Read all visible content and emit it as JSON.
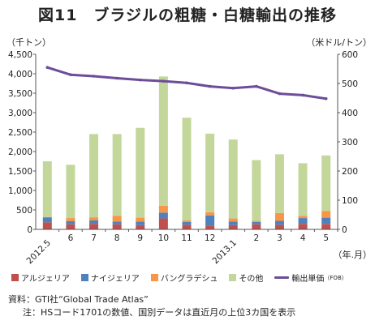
{
  "title": "図11　ブラジルの粗糖・白糖輸出の推移",
  "left_axis_unit": "（千トン）",
  "right_axis_unit": "（米ドル/トン）",
  "x_axis_unit": "（年.月）",
  "source": "資料：GTI社“Global Trade Atlas”",
  "note": "注：HSコード1701の数値、国別データは直近月の上位3カ国を表示",
  "colors": {
    "algeria": "#c0504d",
    "nigeria": "#4f81bd",
    "bangladesh": "#f79646",
    "other": "#c4d79b",
    "price": "#6d4d9a"
  },
  "chart_data": {
    "type": "bar",
    "stacked": true,
    "categories": [
      "2012.5",
      "6",
      "7",
      "8",
      "9",
      "10",
      "11",
      "12",
      "2013.1",
      "2",
      "3",
      "4",
      "5"
    ],
    "series": [
      {
        "name": "アルジェリア",
        "values": [
          180,
          130,
          140,
          130,
          110,
          280,
          120,
          100,
          110,
          130,
          120,
          140,
          140
        ]
      },
      {
        "name": "ナイジェリア",
        "values": [
          130,
          80,
          90,
          70,
          90,
          150,
          70,
          260,
          90,
          60,
          100,
          150,
          160
        ]
      },
      {
        "name": "バングラデシュ",
        "values": [
          0,
          80,
          80,
          150,
          100,
          180,
          40,
          80,
          80,
          30,
          200,
          60,
          170
        ]
      },
      {
        "name": "その他",
        "values": [
          1440,
          1370,
          2140,
          2100,
          2310,
          3320,
          2640,
          2020,
          2030,
          1560,
          1510,
          1350,
          1430
        ]
      }
    ],
    "line": {
      "name": "輸出単価（FOB）",
      "axis": "right",
      "values": [
        555,
        530,
        525,
        518,
        512,
        508,
        502,
        490,
        484,
        490,
        465,
        460,
        448
      ]
    },
    "yleft": {
      "min": 0,
      "max": 4500,
      "step": 500
    },
    "yright": {
      "min": 0,
      "max": 600,
      "step": 100
    },
    "legend": {
      "items": [
        "アルジェリア",
        "ナイジェリア",
        "バングラデシュ",
        "その他",
        "輸出単価"
      ],
      "line_unit": "（FOB）"
    }
  }
}
